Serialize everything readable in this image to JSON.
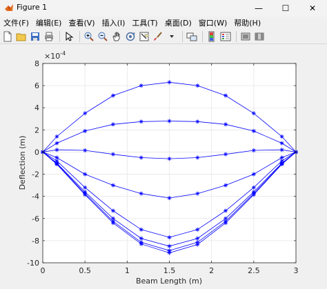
{
  "window": {
    "title": "Figure 1",
    "controls": {
      "minimize": "—",
      "maximize": "☐",
      "close": "✕"
    }
  },
  "menu": [
    "文件(F)",
    "编辑(E)",
    "查看(V)",
    "插入(I)",
    "工具(T)",
    "桌面(D)",
    "窗口(W)",
    "帮助(H)"
  ],
  "toolbar": {
    "icons": [
      "new-figure-icon",
      "open-file-icon",
      "save-icon",
      "print-icon",
      "edit-plot-icon",
      "zoom-in-icon",
      "zoom-out-icon",
      "pan-icon",
      "rotate-3d-icon",
      "data-cursor-icon",
      "brush-icon",
      "link-plot-icon",
      "colorbar-icon",
      "legend-icon",
      "hide-plot-tools-icon",
      "show-plot-tools-icon"
    ]
  },
  "colors": {
    "series": "#0000ff",
    "grid": "#e6e6e6",
    "axes": "#262626"
  },
  "chart_data": {
    "type": "line",
    "xlabel": "Beam Length (m)",
    "ylabel": "Deflection (m)",
    "exponent_label": "×10",
    "exponent_power": "-4",
    "xlim": [
      0,
      3
    ],
    "ylim": [
      -10,
      8
    ],
    "xticks": [
      0,
      0.5,
      1,
      1.5,
      2,
      2.5,
      3
    ],
    "xtick_labels": [
      "0",
      "0.5",
      "1",
      "1.5",
      "2",
      "2.5",
      "3"
    ],
    "yticks": [
      -10,
      -8,
      -6,
      -4,
      -2,
      0,
      2,
      4,
      6,
      8
    ],
    "ytick_labels": [
      "-10",
      "-8",
      "-6",
      "-4",
      "-2",
      "0",
      "2",
      "4",
      "6",
      "8"
    ],
    "grid": true,
    "marker": "asterisk",
    "x": [
      0,
      0.1667,
      0.5,
      0.8333,
      1.1667,
      1.5,
      1.8333,
      2.1667,
      2.5,
      2.8333,
      3
    ],
    "series": [
      {
        "values": [
          0,
          1.4,
          3.5,
          5.1,
          6.0,
          6.3,
          6.0,
          5.1,
          3.5,
          1.4,
          0
        ]
      },
      {
        "values": [
          0,
          0.8,
          1.9,
          2.5,
          2.75,
          2.8,
          2.75,
          2.5,
          1.9,
          0.8,
          0
        ]
      },
      {
        "values": [
          0,
          0.2,
          0.15,
          -0.2,
          -0.5,
          -0.6,
          -0.5,
          -0.2,
          0.15,
          0.2,
          0
        ]
      },
      {
        "values": [
          0,
          -0.5,
          -2.0,
          -3.0,
          -3.75,
          -4.15,
          -3.75,
          -3.0,
          -2.0,
          -0.5,
          0
        ]
      },
      {
        "values": [
          0,
          -0.8,
          -3.2,
          -5.3,
          -7.0,
          -7.7,
          -7.0,
          -5.3,
          -3.2,
          -0.8,
          0
        ]
      },
      {
        "values": [
          0,
          -1.0,
          -3.6,
          -6.0,
          -7.8,
          -8.5,
          -7.8,
          -6.0,
          -3.6,
          -1.0,
          0
        ]
      },
      {
        "values": [
          0,
          -1.05,
          -3.75,
          -6.25,
          -8.15,
          -8.9,
          -8.15,
          -6.25,
          -3.75,
          -1.05,
          0
        ]
      },
      {
        "values": [
          0,
          -1.1,
          -3.85,
          -6.4,
          -8.3,
          -9.1,
          -8.35,
          -6.4,
          -3.85,
          -1.1,
          0
        ]
      }
    ]
  }
}
